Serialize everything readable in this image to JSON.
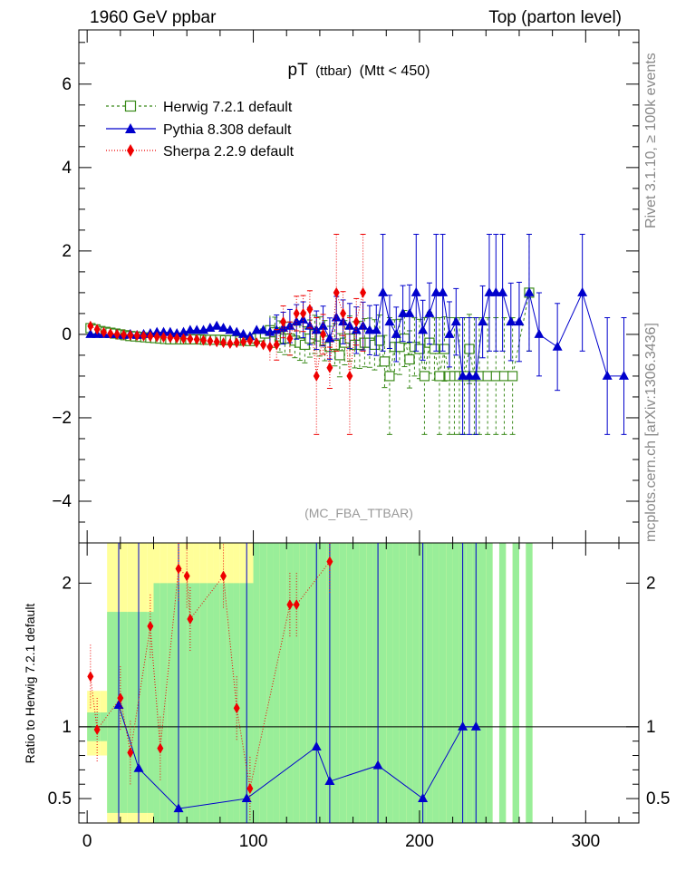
{
  "header": {
    "left": "1960 GeV ppbar",
    "right": "Top (parton level)"
  },
  "side_labels": {
    "rivet": "Rivet 3.1.10, ≥ 100k events",
    "mcplots": "mcplots.cern.ch [arXiv:1306.3436]"
  },
  "chart_data": {
    "type": "line",
    "title": "pT (ttbar) (Mtt < 450)",
    "title_main": "pT",
    "title_sub": "(ttbar)",
    "title_cut": "(Mtt < 450)",
    "watermark": "(MC_FBA_TTBAR)",
    "legend_position": "top-left",
    "xlim": [
      -5,
      332
    ],
    "ylim": [
      -5,
      7.3
    ],
    "x_ticks": [
      0,
      100,
      200,
      300
    ],
    "y_ticks": [
      -4,
      -2,
      0,
      2,
      4,
      6
    ],
    "ratio": {
      "ylabel": "Ratio to Herwig 7.2.1 default",
      "ylim": [
        0.33,
        2.28
      ],
      "y_ticks": [
        0.5,
        1,
        2
      ],
      "y_tick_labels": [
        "0.5",
        "1",
        "2"
      ],
      "reference_line": 1
    },
    "series": [
      {
        "name": "Herwig 7.2.1 default",
        "color": "#3a8a1a",
        "marker": "open-square",
        "line": "dashed",
        "points": [
          [
            2,
            0.15
          ],
          [
            5,
            0.12
          ],
          [
            8,
            0.08
          ],
          [
            11,
            0.06
          ],
          [
            14,
            0.04
          ],
          [
            17,
            0.02
          ],
          [
            20,
            0.0
          ],
          [
            23,
            -0.02
          ],
          [
            26,
            -0.04
          ],
          [
            29,
            -0.05
          ],
          [
            32,
            -0.06
          ],
          [
            35,
            -0.07
          ],
          [
            38,
            -0.08
          ],
          [
            41,
            -0.09
          ],
          [
            44,
            -0.1
          ],
          [
            47,
            -0.11
          ],
          [
            50,
            -0.12
          ],
          [
            53,
            -0.12
          ],
          [
            56,
            -0.12
          ],
          [
            59,
            -0.12
          ],
          [
            62,
            -0.12
          ],
          [
            65,
            -0.12
          ],
          [
            68,
            -0.12
          ],
          [
            71,
            -0.13
          ],
          [
            74,
            -0.13
          ],
          [
            77,
            -0.13
          ],
          [
            80,
            -0.13
          ],
          [
            83,
            -0.14
          ],
          [
            86,
            -0.14
          ],
          [
            89,
            -0.14
          ],
          [
            92,
            -0.15
          ],
          [
            95,
            -0.15
          ],
          [
            98,
            -0.16
          ],
          [
            101,
            -0.1
          ],
          [
            104,
            -0.05
          ],
          [
            107,
            0.02
          ],
          [
            110,
            0.1
          ],
          [
            113,
            0.05
          ],
          [
            116,
            -0.05
          ],
          [
            119,
            -0.1
          ],
          [
            122,
            -0.1
          ],
          [
            125,
            -0.15
          ],
          [
            128,
            -0.2
          ],
          [
            131,
            -0.25
          ],
          [
            134,
            -0.1
          ],
          [
            137,
            0.0
          ],
          [
            140,
            -0.05
          ],
          [
            143,
            -0.15
          ],
          [
            146,
            -0.3
          ],
          [
            149,
            -0.25
          ],
          [
            152,
            -0.5
          ],
          [
            155,
            -0.2
          ],
          [
            158,
            -0.1
          ],
          [
            161,
            -0.25
          ],
          [
            164,
            -0.25
          ],
          [
            167,
            -0.2
          ],
          [
            170,
            -0.2
          ],
          [
            173,
            -0.25
          ],
          [
            176,
            -0.15
          ],
          [
            179,
            -0.65
          ],
          [
            182,
            -1.0
          ],
          [
            185,
            -0.3
          ],
          [
            188,
            -0.3
          ],
          [
            191,
            -0.1
          ],
          [
            194,
            -0.6
          ],
          [
            197,
            -0.3
          ],
          [
            200,
            -0.35
          ],
          [
            203,
            -1.0
          ],
          [
            206,
            -0.2
          ],
          [
            209,
            -0.35
          ],
          [
            212,
            -1.0
          ],
          [
            215,
            -0.35
          ],
          [
            218,
            -1.0
          ],
          [
            221,
            -1.0
          ],
          [
            224,
            -1.0
          ],
          [
            227,
            -1.0
          ],
          [
            230,
            -0.35
          ],
          [
            233,
            -1.0
          ],
          [
            236,
            -1.0
          ],
          [
            241,
            -1.0
          ],
          [
            246,
            -1.0
          ],
          [
            251,
            -1.0
          ],
          [
            256,
            -1.0
          ],
          [
            266,
            1.0
          ]
        ]
      },
      {
        "name": "Pythia 8.308 default",
        "color": "#0000cc",
        "marker": "filled-triangle",
        "line": "solid",
        "points": [
          [
            2,
            0.0
          ],
          [
            6,
            0.0
          ],
          [
            10,
            0.0
          ],
          [
            14,
            0.0
          ],
          [
            18,
            0.0
          ],
          [
            22,
            -0.02
          ],
          [
            26,
            0.0
          ],
          [
            30,
            -0.02
          ],
          [
            34,
            0.0
          ],
          [
            38,
            0.02
          ],
          [
            42,
            0.05
          ],
          [
            46,
            0.05
          ],
          [
            50,
            0.05
          ],
          [
            54,
            0.02
          ],
          [
            58,
            0.05
          ],
          [
            62,
            0.1
          ],
          [
            66,
            0.1
          ],
          [
            70,
            0.1
          ],
          [
            74,
            0.15
          ],
          [
            78,
            0.2
          ],
          [
            82,
            0.15
          ],
          [
            86,
            0.1
          ],
          [
            90,
            0.05
          ],
          [
            94,
            0.0
          ],
          [
            98,
            -0.05
          ],
          [
            102,
            0.1
          ],
          [
            106,
            0.1
          ],
          [
            110,
            0.05
          ],
          [
            114,
            0.1
          ],
          [
            118,
            0.15
          ],
          [
            122,
            0.2
          ],
          [
            126,
            0.3
          ],
          [
            130,
            0.35
          ],
          [
            134,
            0.2
          ],
          [
            138,
            0.1
          ],
          [
            142,
            0.2
          ],
          [
            146,
            -0.1
          ],
          [
            150,
            0.4
          ],
          [
            154,
            0.3
          ],
          [
            158,
            0.2
          ],
          [
            162,
            0.1
          ],
          [
            166,
            0.2
          ],
          [
            170,
            0.1
          ],
          [
            174,
            0.1
          ],
          [
            178,
            1.0
          ],
          [
            182,
            0.3
          ],
          [
            186,
            0.0
          ],
          [
            190,
            0.5
          ],
          [
            194,
            0.5
          ],
          [
            198,
            1.0
          ],
          [
            202,
            0.1
          ],
          [
            206,
            0.5
          ],
          [
            210,
            1.0
          ],
          [
            214,
            1.0
          ],
          [
            218,
            0.0
          ],
          [
            222,
            0.3
          ],
          [
            226,
            -1.0
          ],
          [
            230,
            -1.0
          ],
          [
            234,
            -1.0
          ],
          [
            238,
            0.3
          ],
          [
            242,
            1.0
          ],
          [
            246,
            1.0
          ],
          [
            250,
            1.0
          ],
          [
            255,
            0.3
          ],
          [
            260,
            0.3
          ],
          [
            266,
            1.0
          ],
          [
            272,
            0.0
          ],
          [
            283,
            -0.3
          ],
          [
            298,
            1.0
          ],
          [
            313,
            -1.0
          ],
          [
            323,
            -1.0
          ]
        ]
      },
      {
        "name": "Sherpa 2.2.9 default",
        "color": "#ee0000",
        "marker": "filled-diamond",
        "line": "dotted",
        "points": [
          [
            2,
            0.2
          ],
          [
            6,
            0.12
          ],
          [
            10,
            0.05
          ],
          [
            14,
            0.02
          ],
          [
            18,
            0.0
          ],
          [
            22,
            -0.01
          ],
          [
            26,
            -0.02
          ],
          [
            30,
            -0.03
          ],
          [
            34,
            -0.04
          ],
          [
            38,
            -0.05
          ],
          [
            42,
            -0.06
          ],
          [
            46,
            -0.07
          ],
          [
            50,
            -0.08
          ],
          [
            54,
            -0.09
          ],
          [
            58,
            -0.1
          ],
          [
            62,
            -0.11
          ],
          [
            66,
            -0.12
          ],
          [
            70,
            -0.14
          ],
          [
            74,
            -0.16
          ],
          [
            78,
            -0.18
          ],
          [
            82,
            -0.2
          ],
          [
            86,
            -0.22
          ],
          [
            90,
            -0.2
          ],
          [
            94,
            -0.18
          ],
          [
            98,
            -0.15
          ],
          [
            102,
            -0.2
          ],
          [
            106,
            -0.25
          ],
          [
            110,
            -0.3
          ],
          [
            114,
            -0.25
          ],
          [
            118,
            0.3
          ],
          [
            122,
            -0.1
          ],
          [
            126,
            0.5
          ],
          [
            130,
            0.5
          ],
          [
            134,
            0.6
          ],
          [
            138,
            -1.0
          ],
          [
            142,
            0.0
          ],
          [
            146,
            -0.8
          ],
          [
            150,
            1.0
          ],
          [
            154,
            0.5
          ],
          [
            158,
            -1.0
          ],
          [
            162,
            0.3
          ],
          [
            166,
            1.0
          ]
        ]
      }
    ],
    "ratio_series": [
      {
        "name": "Pythia 8.308 default",
        "points": [
          [
            19,
            1.15
          ],
          [
            31,
            0.71
          ],
          [
            55,
            0.43
          ],
          [
            96,
            0.5
          ],
          [
            138,
            0.86
          ],
          [
            146,
            0.62
          ],
          [
            175,
            0.73
          ],
          [
            202,
            0.5
          ],
          [
            226,
            1.0
          ],
          [
            234,
            1.0
          ]
        ]
      },
      {
        "name": "Sherpa 2.2.9 default",
        "points": [
          [
            2,
            1.35
          ],
          [
            6,
            0.98
          ],
          [
            20,
            1.2
          ],
          [
            26,
            0.82
          ],
          [
            38,
            1.7
          ],
          [
            44,
            0.85
          ],
          [
            55,
            2.1
          ],
          [
            60,
            2.05
          ],
          [
            62,
            1.75
          ],
          [
            82,
            2.05
          ],
          [
            90,
            1.13
          ],
          [
            98,
            0.57
          ],
          [
            122,
            1.85
          ],
          [
            126,
            1.85
          ],
          [
            146,
            2.15
          ]
        ]
      }
    ]
  }
}
